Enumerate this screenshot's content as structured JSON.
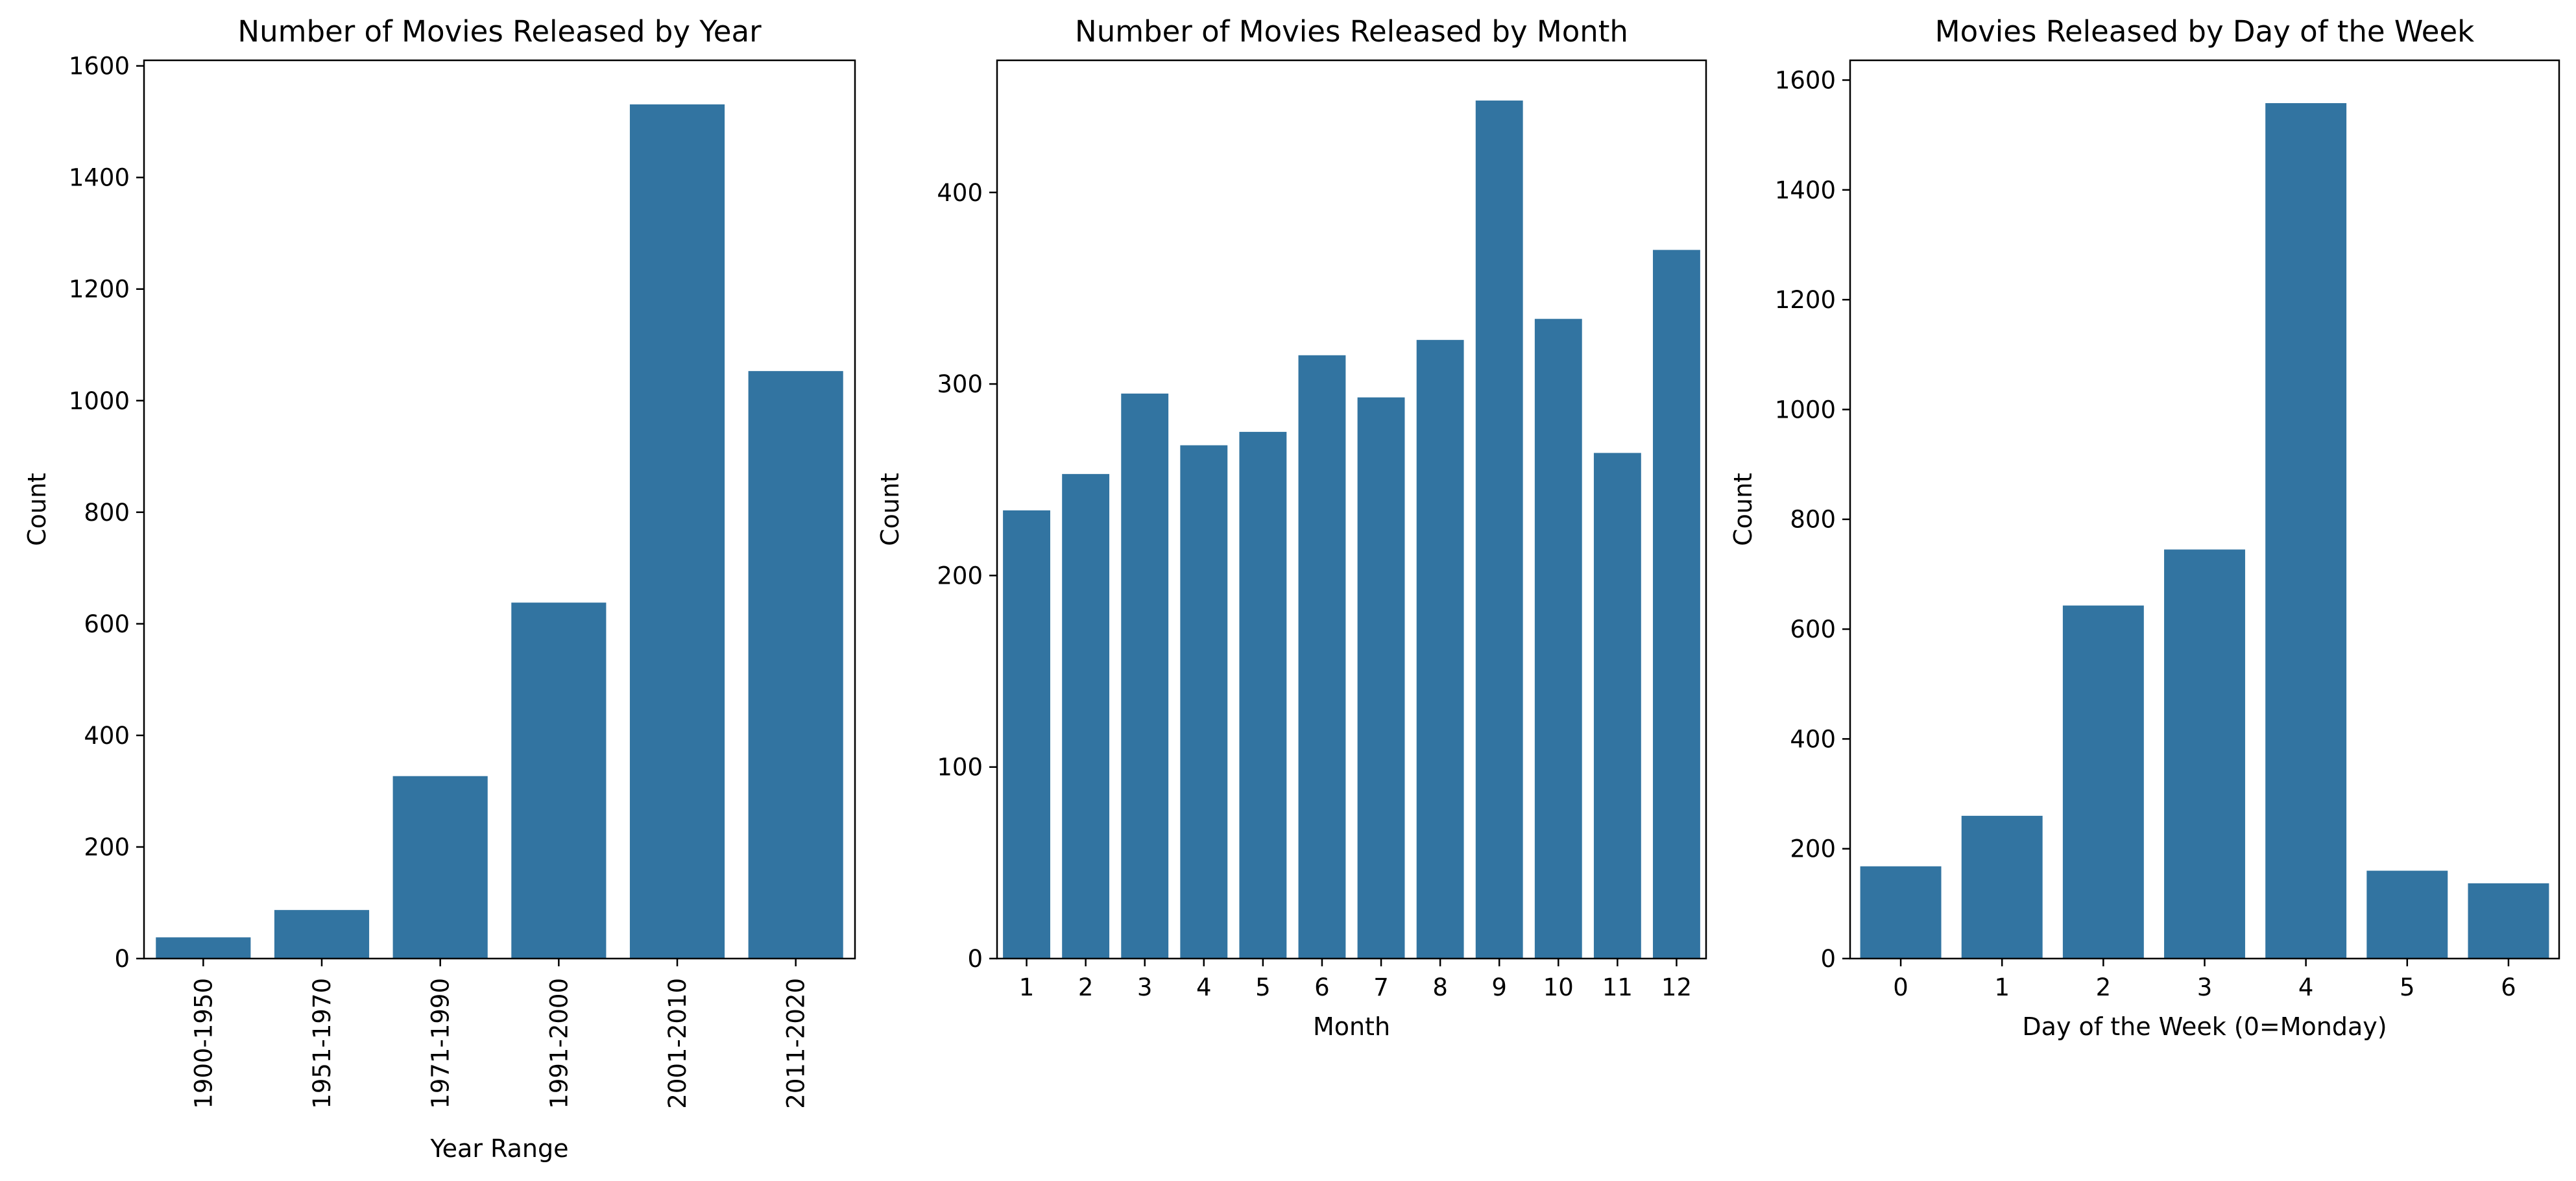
{
  "bar_color": "#3274a1",
  "chart_data": [
    {
      "type": "bar",
      "title": "Number of Movies Released by Year",
      "xlabel": "Year Range",
      "ylabel": "Count",
      "categories": [
        "1900-1950",
        "1951-1970",
        "1971-1990",
        "1991-2000",
        "2001-2010",
        "2011-2020"
      ],
      "values": [
        38,
        87,
        327,
        638,
        1531,
        1053
      ],
      "ylim": [
        0,
        1610
      ],
      "yticks": [
        0,
        200,
        400,
        600,
        800,
        1000,
        1200,
        1400,
        1600
      ],
      "xtick_rotation": "vertical",
      "grid": false
    },
    {
      "type": "bar",
      "title": "Number of Movies Released by Month",
      "xlabel": "Month",
      "ylabel": "Count",
      "categories": [
        "1",
        "2",
        "3",
        "4",
        "5",
        "6",
        "7",
        "8",
        "9",
        "10",
        "11",
        "12"
      ],
      "values": [
        234,
        253,
        295,
        268,
        275,
        315,
        293,
        323,
        448,
        334,
        264,
        370
      ],
      "ylim": [
        0,
        469
      ],
      "yticks": [
        0,
        100,
        200,
        300,
        400
      ],
      "xtick_rotation": "horizontal",
      "grid": false
    },
    {
      "type": "bar",
      "title": "Movies Released by Day of the Week",
      "xlabel": "Day of the Week (0=Monday)",
      "ylabel": "Count",
      "categories": [
        "0",
        "1",
        "2",
        "3",
        "4",
        "5",
        "6"
      ],
      "values": [
        168,
        260,
        643,
        745,
        1558,
        160,
        137
      ],
      "ylim": [
        0,
        1636
      ],
      "yticks": [
        0,
        200,
        400,
        600,
        800,
        1000,
        1200,
        1400,
        1600
      ],
      "xtick_rotation": "horizontal",
      "grid": false
    }
  ]
}
